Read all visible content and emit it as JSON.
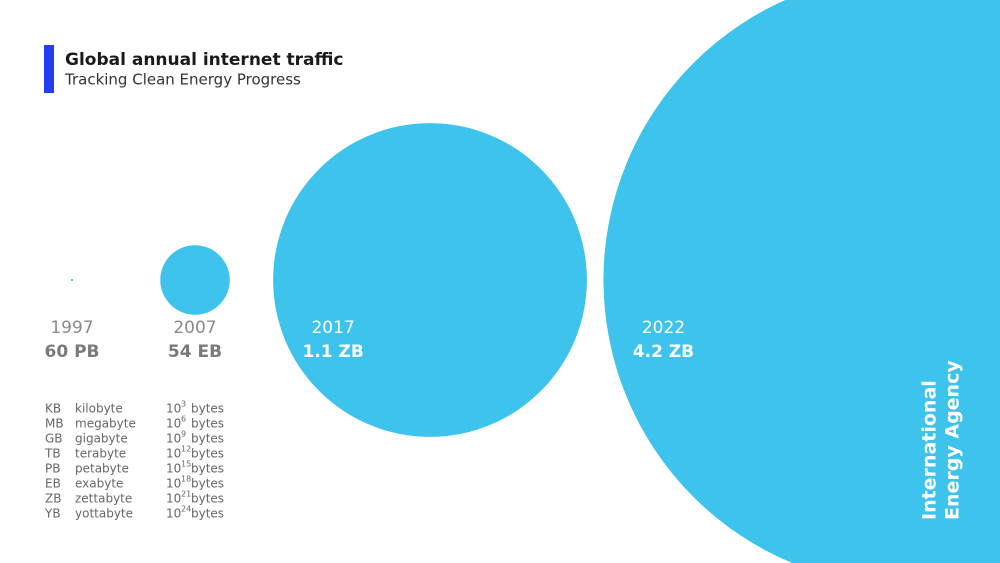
{
  "chart_data": {
    "type": "bubble",
    "title": "Global annual internet traffic",
    "subtitle": "Tracking Clean Energy Progress",
    "categories": [
      "1997",
      "2007",
      "2017",
      "2022"
    ],
    "values": [
      0.06,
      54,
      1100,
      4200
    ],
    "value_labels": [
      "60 PB",
      "54 EB",
      "1.1 ZB",
      "4.2 ZB"
    ],
    "color": "#3ec3ec"
  },
  "units_table": {
    "rows": [
      [
        "KB",
        "kilobyte",
        "10",
        "3",
        "bytes"
      ],
      [
        "MB",
        "megabyte",
        "10",
        "6",
        "bytes"
      ],
      [
        "GB",
        "gigabyte",
        "10",
        "9",
        "bytes"
      ],
      [
        "TB",
        "terabyte",
        "10",
        "12",
        "bytes"
      ],
      [
        "PB",
        "petabyte",
        "10",
        "15",
        "bytes"
      ],
      [
        "EB",
        "exabyte",
        "10",
        "18",
        "bytes"
      ],
      [
        "ZB",
        "zettabyte",
        "10",
        "21",
        "bytes"
      ],
      [
        "YB",
        "yottabyte",
        "10",
        "24",
        "bytes"
      ]
    ]
  },
  "watermark": [
    "International",
    "Energy Agency"
  ]
}
